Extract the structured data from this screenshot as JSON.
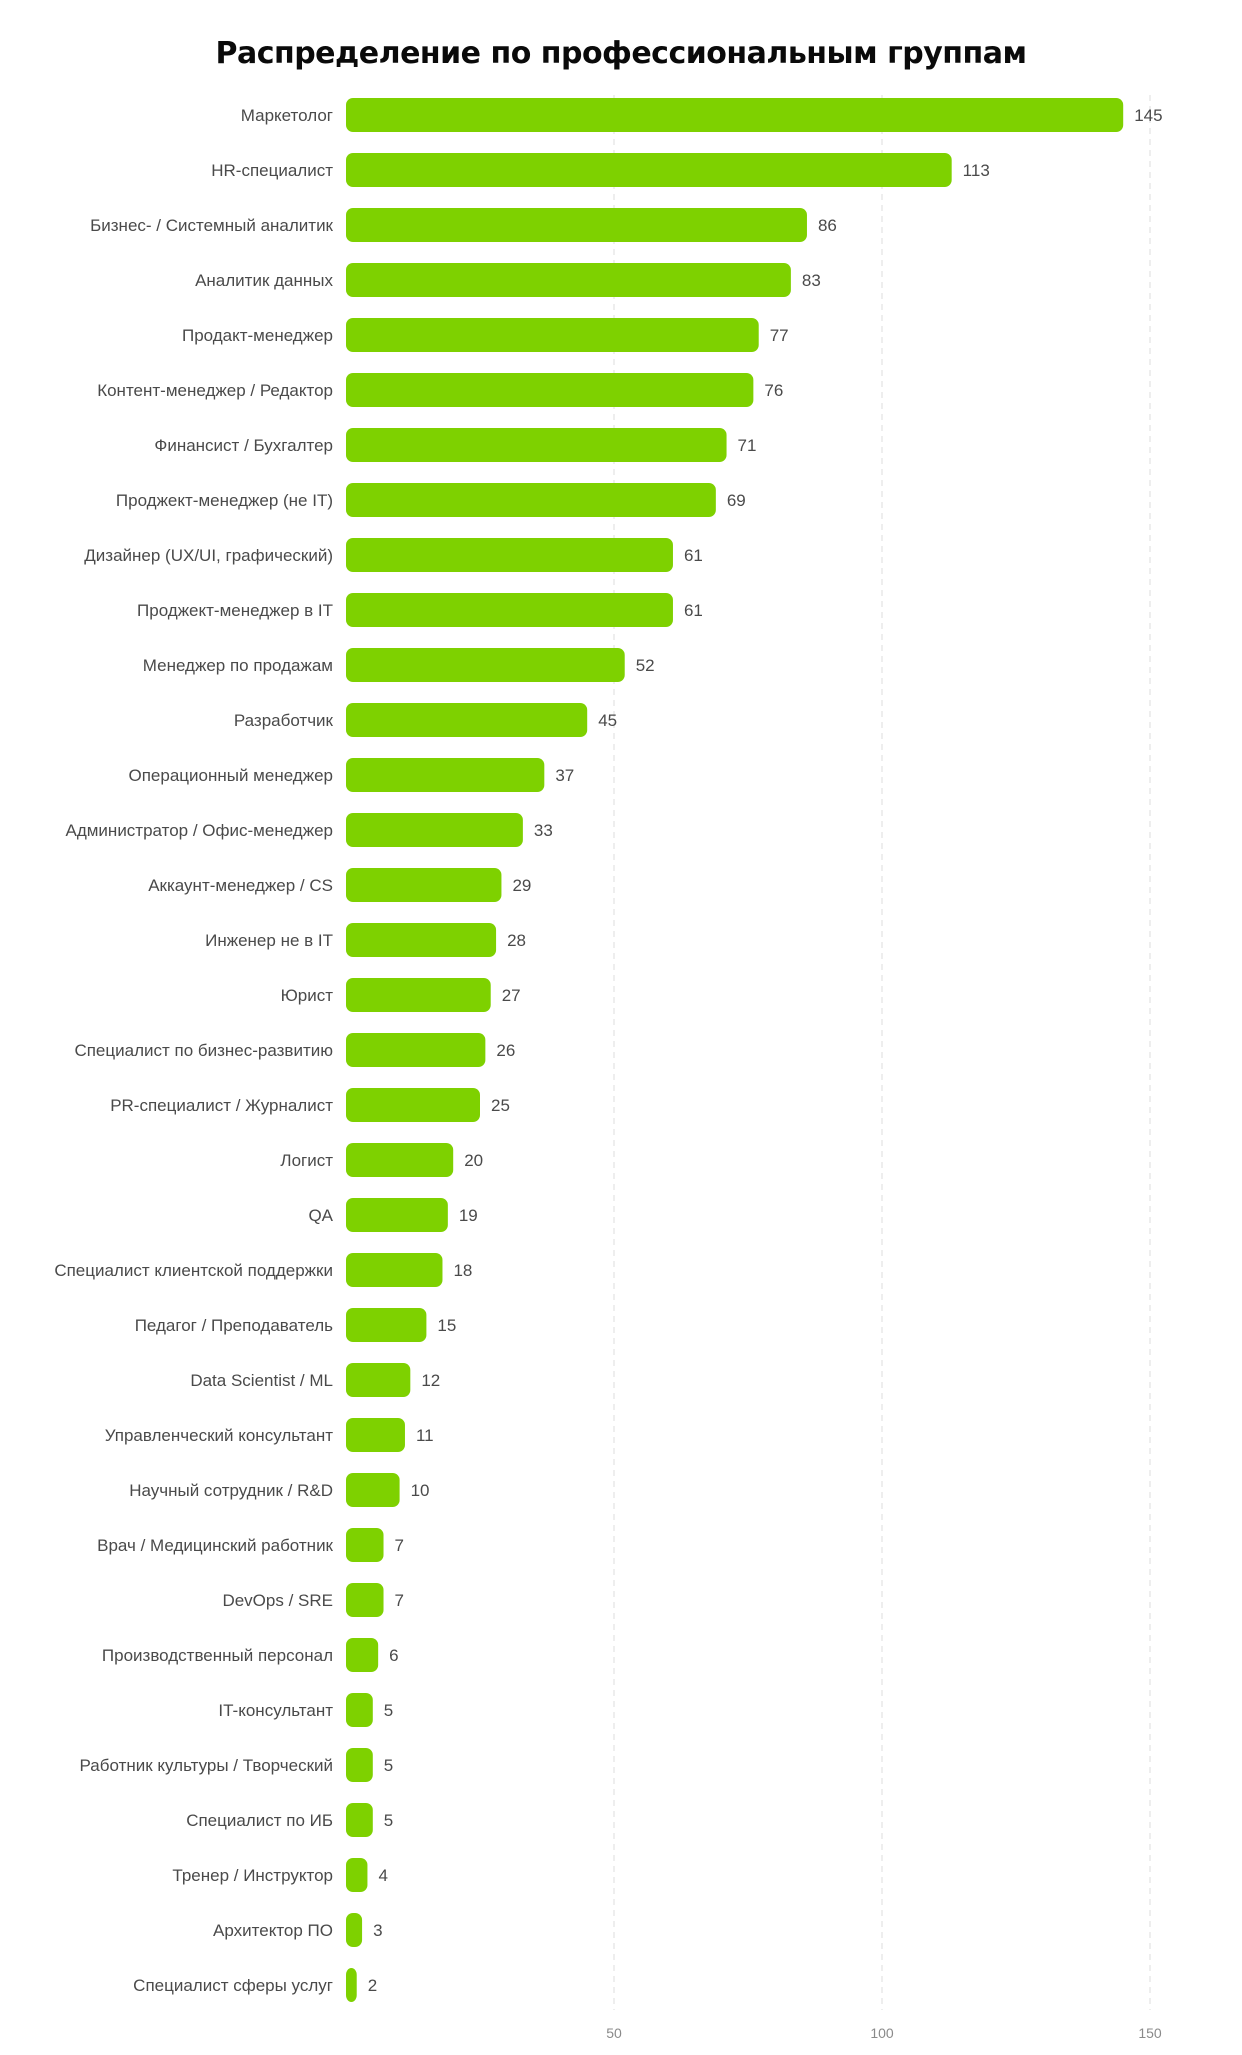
{
  "chart_data": {
    "type": "bar",
    "orientation": "horizontal",
    "title": "Распределение по профессиональным группам",
    "categories": [
      "Маркетолог",
      "HR-специалист",
      "Бизнес- / Системный аналитик",
      "Аналитик данных",
      "Продакт-менеджер",
      "Контент-менеджер / Редактор",
      "Финансист / Бухгалтер",
      "Проджект-менеджер (не IT)",
      "Дизайнер (UX/UI, графический)",
      "Проджект-менеджер в IT",
      "Менеджер по продажам",
      "Разработчик",
      "Операционный менеджер",
      "Администратор / Офис-менеджер",
      "Аккаунт-менеджер / CS",
      "Инженер не в IT",
      "Юрист",
      "Специалист по бизнес-развитию",
      "PR-специалист / Журналист",
      "Логист",
      "QA",
      "Специалист клиентской поддержки",
      "Педагог / Преподаватель",
      "Data Scientist / ML",
      "Управленческий консультант",
      "Научный сотрудник / R&D",
      "Врач / Медицинский работник",
      "DevOps / SRE",
      "Производственный персонал",
      "IT-консультант",
      "Работник культуры / Творческий",
      "Специалист по ИБ",
      "Тренер / Инструктор",
      "Архитектор ПО",
      "Специалист сферы услуг"
    ],
    "values": [
      145,
      113,
      86,
      83,
      77,
      76,
      71,
      69,
      61,
      61,
      52,
      45,
      37,
      33,
      29,
      28,
      27,
      26,
      25,
      20,
      19,
      18,
      15,
      12,
      11,
      10,
      7,
      7,
      6,
      5,
      5,
      5,
      4,
      3,
      2
    ],
    "xticks": [
      50,
      100,
      150
    ],
    "xlim": [
      0,
      150
    ],
    "grid": "vertical dashed",
    "bar_color": "#7ed100",
    "grid_color": "#e2e2e2"
  }
}
